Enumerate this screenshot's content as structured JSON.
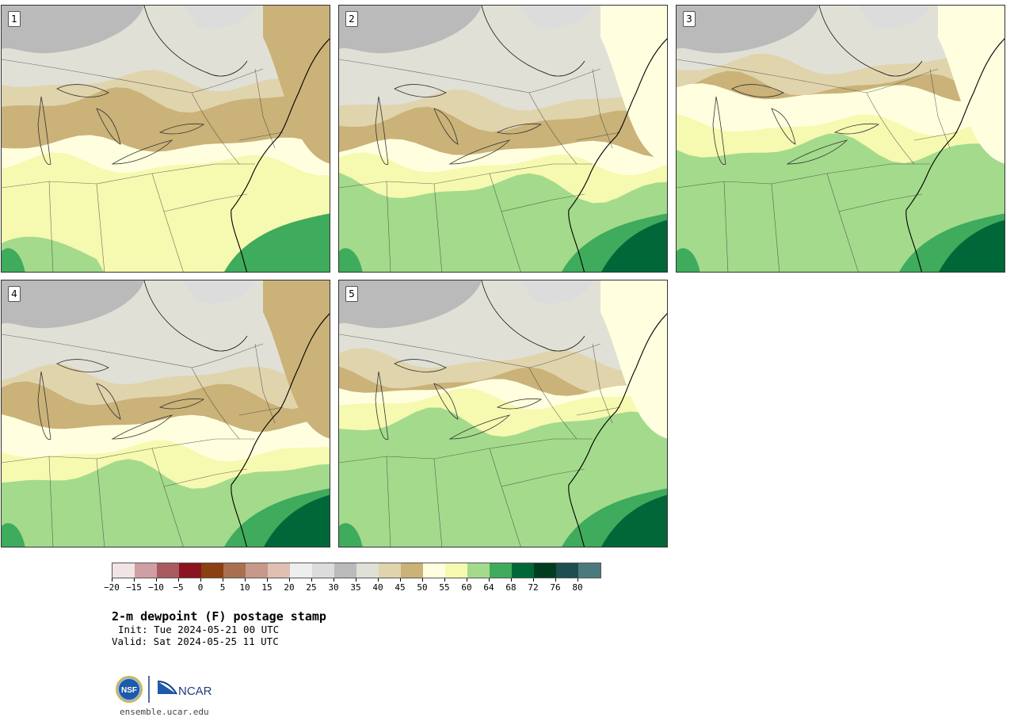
{
  "panels": [
    {
      "label": "1"
    },
    {
      "label": "2"
    },
    {
      "label": "3"
    },
    {
      "label": "4"
    },
    {
      "label": "5"
    }
  ],
  "colorbar": {
    "colors": [
      "#f0e4e4",
      "#cf9fa3",
      "#a95a5f",
      "#8b1420",
      "#8a4012",
      "#a97050",
      "#c6998a",
      "#dfc0b2",
      "#eeeeee",
      "#dcdcdc",
      "#bababa",
      "#e0e0d6",
      "#e0d4ad",
      "#cab278",
      "#ffffe0",
      "#f6f9b0",
      "#a4da8c",
      "#3fab5c",
      "#006838",
      "#003d20",
      "#1e4e50",
      "#4c797d"
    ],
    "tick_labels": [
      "−20",
      "−15",
      "−10",
      "−5",
      "0",
      "5",
      "10",
      "15",
      "20",
      "25",
      "30",
      "35",
      "40",
      "45",
      "50",
      "55",
      "60",
      "64",
      "68",
      "72",
      "76",
      "80"
    ]
  },
  "title": "2-m dewpoint (F) postage stamp",
  "init": "Init: Tue 2024-05-21 00 UTC",
  "valid": "Valid: Sat 2024-05-25 11 UTC",
  "logo": {
    "nsf": "NSF",
    "ncar": "NCAR"
  },
  "website": "ensemble.ucar.edu"
}
